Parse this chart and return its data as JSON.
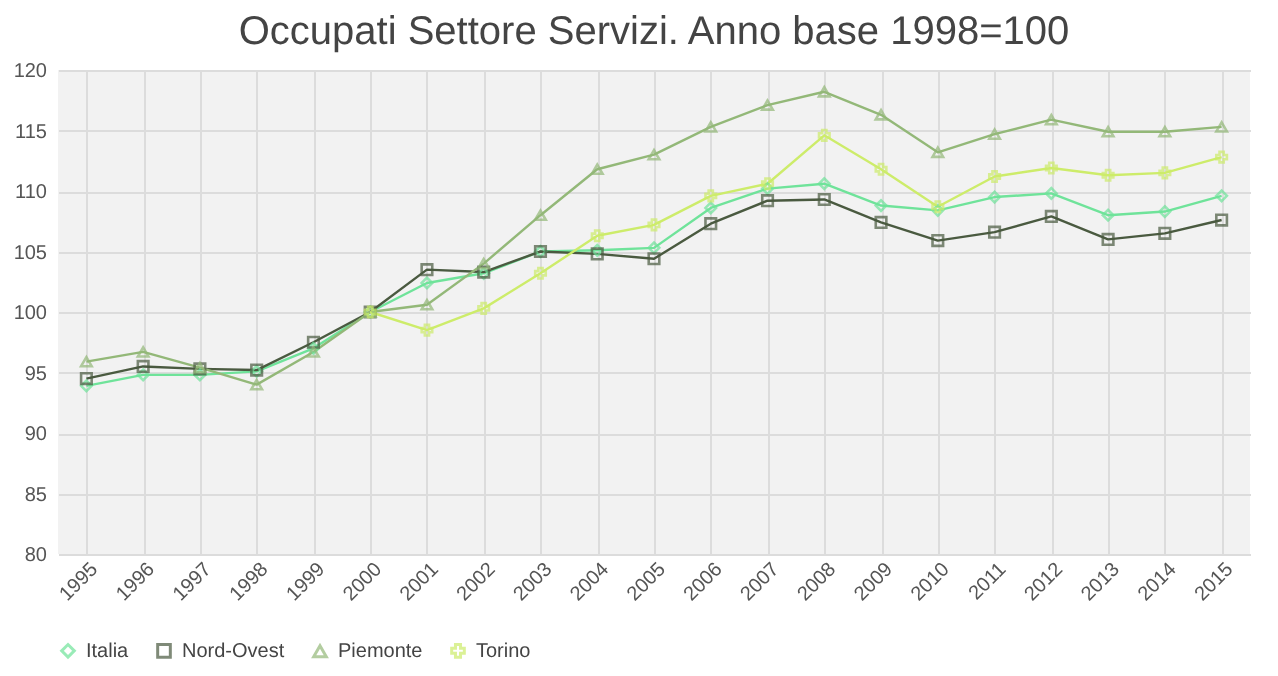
{
  "chart_data": {
    "type": "line",
    "title": "Occupati Settore Servizi. Anno base 1998=100",
    "categories": [
      "1995",
      "1996",
      "1997",
      "1998",
      "1999",
      "2000",
      "2001",
      "2002",
      "2003",
      "2004",
      "2005",
      "2006",
      "2007",
      "2008",
      "2009",
      "2010",
      "2011",
      "2012",
      "2013",
      "2014",
      "2015"
    ],
    "series": [
      {
        "name": "Italia",
        "color": "#6fe39a",
        "marker": "diamond",
        "values": [
          93.9,
          94.8,
          94.8,
          95.1,
          97,
          100,
          102.4,
          103.2,
          105,
          105.1,
          105.3,
          108.6,
          110.2,
          110.6,
          108.8,
          108.4,
          109.5,
          109.8,
          108.0,
          108.3,
          109.6
        ]
      },
      {
        "name": "Nord-Ovest",
        "color": "#4a5a40",
        "marker": "square",
        "values": [
          94.5,
          95.5,
          95.3,
          95.2,
          97.5,
          100,
          103.5,
          103.3,
          105,
          104.8,
          104.4,
          107.3,
          109.2,
          109.3,
          107.4,
          105.9,
          106.6,
          107.9,
          106.0,
          106.5,
          107.6
        ]
      },
      {
        "name": "Piemonte",
        "color": "#93b878",
        "marker": "triangle",
        "values": [
          95.9,
          96.7,
          95.4,
          94.0,
          96.7,
          100,
          100.6,
          104,
          108,
          111.8,
          113.0,
          115.3,
          117.1,
          118.2,
          116.3,
          113.2,
          114.7,
          115.9,
          114.9,
          114.9,
          115.3
        ]
      },
      {
        "name": "Torino",
        "color": "#cdec6a",
        "marker": "cross",
        "values": [
          null,
          null,
          null,
          null,
          null,
          100,
          98.5,
          100.3,
          103.2,
          106.3,
          107.2,
          109.6,
          110.6,
          114.6,
          111.8,
          108.7,
          111.2,
          111.9,
          111.3,
          111.5,
          112.8
        ]
      }
    ],
    "ylim": [
      80,
      120
    ],
    "yticks": [
      80,
      85,
      90,
      95,
      100,
      105,
      110,
      115,
      120
    ],
    "grid": true,
    "legend": "bottom"
  }
}
